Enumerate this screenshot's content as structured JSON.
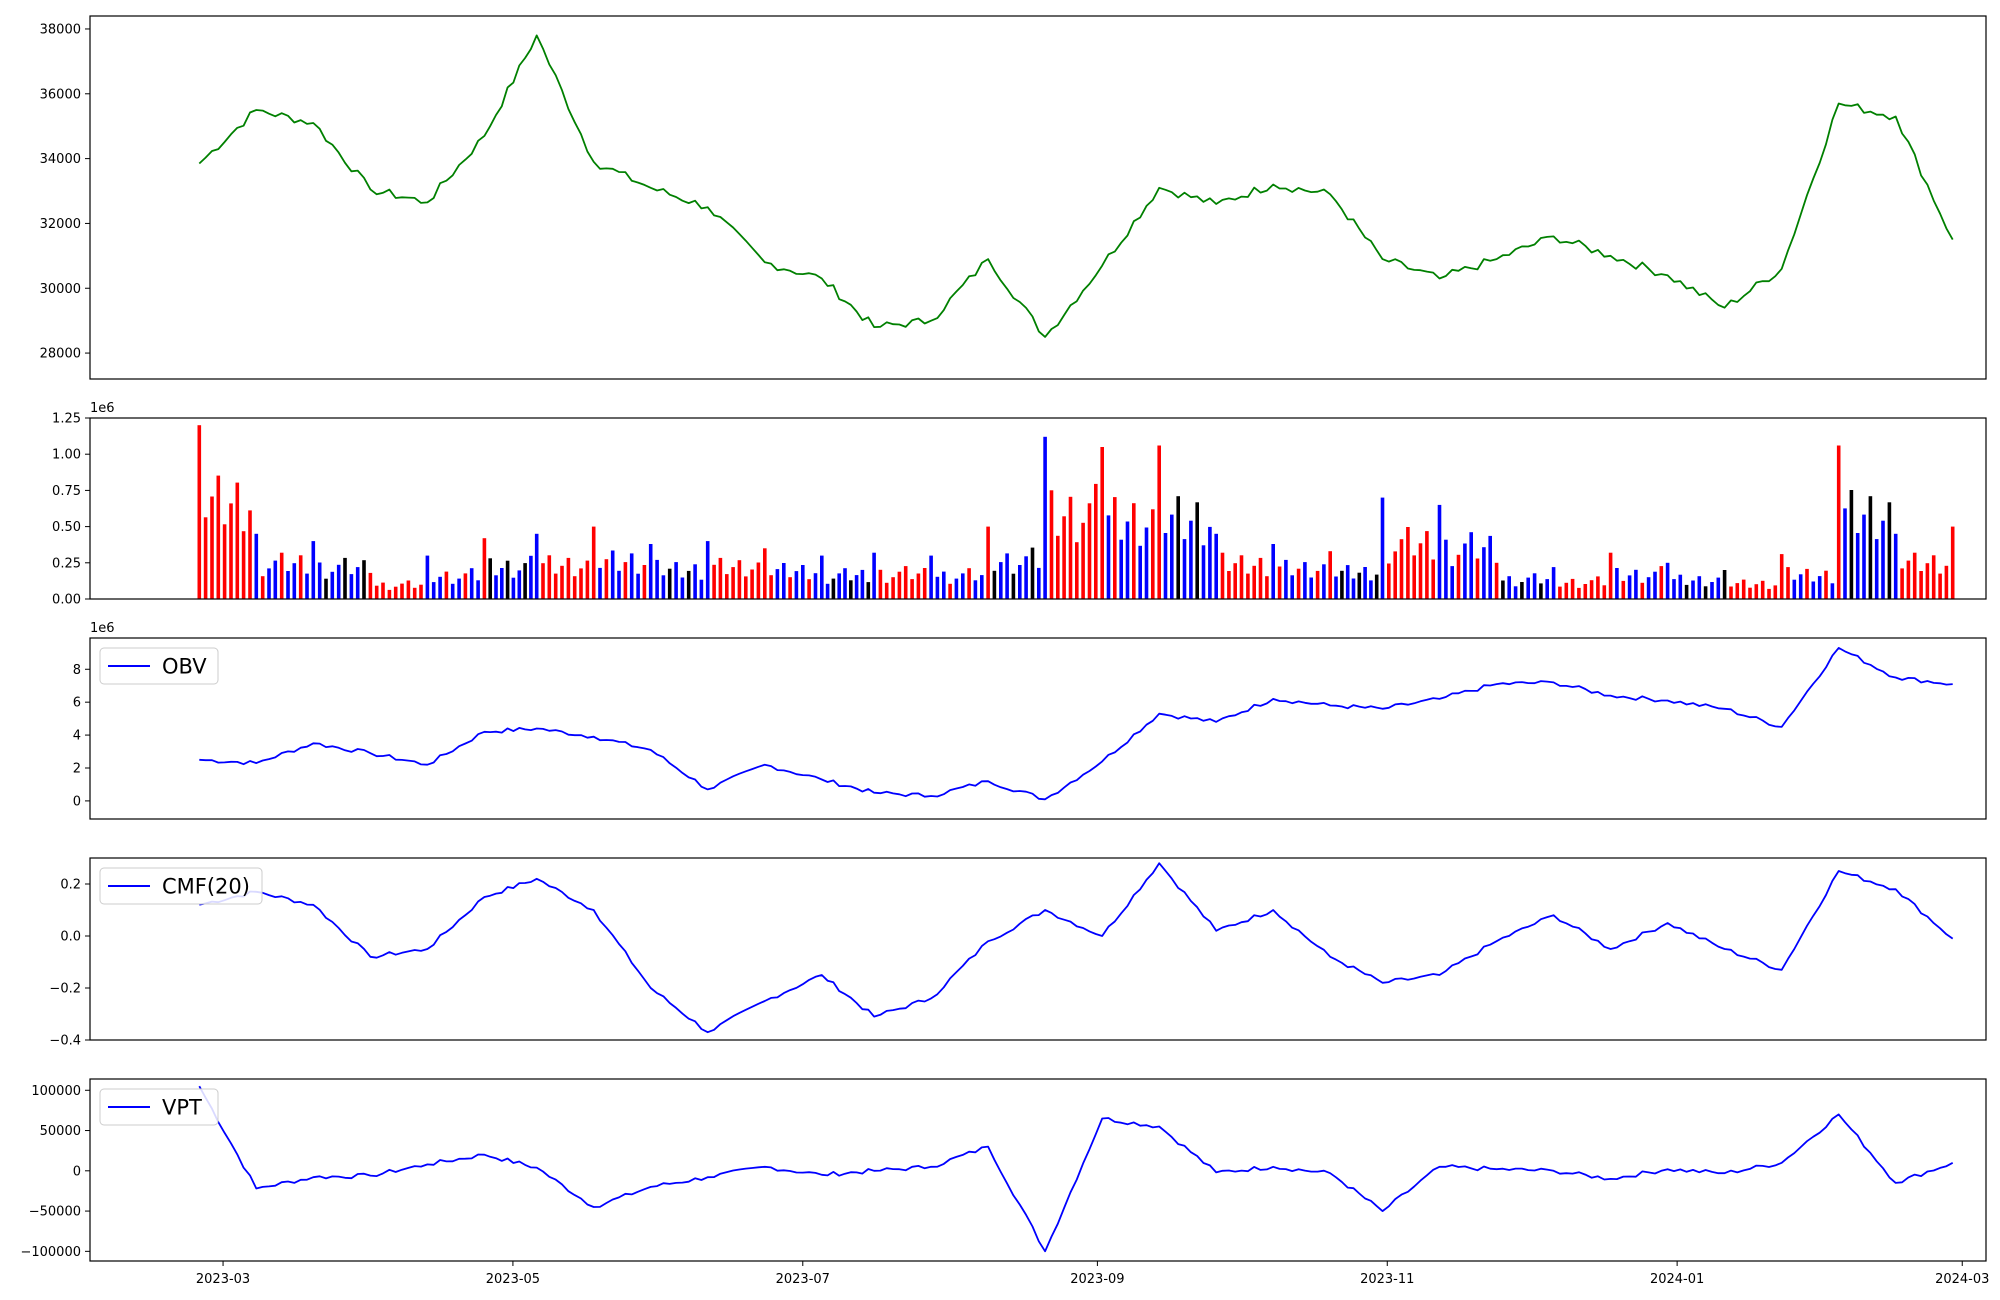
{
  "chart_data": [
    {
      "type": "line",
      "name": "price",
      "color": "#008000",
      "ylim": [
        27200,
        38400
      ],
      "yticks": [
        28000,
        30000,
        32000,
        34000,
        36000,
        38000
      ],
      "ytick_labels": [
        "28000",
        "30000",
        "32000",
        "34000",
        "36000",
        "38000"
      ],
      "x": [
        "2023-02-24",
        "2023-03-08",
        "2023-03-20",
        "2023-04-01",
        "2023-04-13",
        "2023-04-25",
        "2023-05-06",
        "2023-05-18",
        "2023-05-30",
        "2023-06-11",
        "2023-06-23",
        "2023-07-05",
        "2023-07-16",
        "2023-07-28",
        "2023-08-09",
        "2023-08-21",
        "2023-09-02",
        "2023-09-14",
        "2023-09-26",
        "2023-10-08",
        "2023-10-20",
        "2023-10-31",
        "2023-11-12",
        "2023-11-24",
        "2023-12-06",
        "2023-12-18",
        "2023-12-30",
        "2024-01-11",
        "2024-01-23",
        "2024-02-04",
        "2024-02-16",
        "2024-02-28"
      ],
      "y": [
        33850,
        35500,
        35100,
        33050,
        32650,
        34700,
        37800,
        33900,
        33100,
        32500,
        30800,
        30300,
        28800,
        29000,
        30900,
        28500,
        30700,
        33100,
        32600,
        33200,
        32900,
        30900,
        30300,
        30900,
        31600,
        31000,
        30400,
        29400,
        30600,
        35700,
        35300,
        31500
      ]
    },
    {
      "type": "bar",
      "name": "volume",
      "ylim": [
        0,
        1250000
      ],
      "yticks": [
        0,
        250000,
        500000,
        750000,
        1000000,
        1250000
      ],
      "ytick_labels": [
        "0.00",
        "0.25",
        "0.50",
        "0.75",
        "1.00",
        "1.25"
      ],
      "offset_text": "1e6",
      "colors": {
        "up": "#ff0000",
        "down": "#0000ff",
        "flat": "#000000"
      },
      "x": [
        "2023-02-24",
        "2023-03-08",
        "2023-03-20",
        "2023-04-01",
        "2023-04-13",
        "2023-04-25",
        "2023-05-06",
        "2023-05-18",
        "2023-05-30",
        "2023-06-11",
        "2023-06-23",
        "2023-07-05",
        "2023-07-16",
        "2023-07-28",
        "2023-08-09",
        "2023-08-21",
        "2023-09-02",
        "2023-09-14",
        "2023-09-26",
        "2023-10-08",
        "2023-10-20",
        "2023-10-31",
        "2023-11-12",
        "2023-11-24",
        "2023-12-06",
        "2023-12-18",
        "2023-12-30",
        "2024-01-11",
        "2024-01-23",
        "2024-02-04",
        "2024-02-16",
        "2024-02-28"
      ],
      "values": [
        1200000,
        450000,
        400000,
        180000,
        300000,
        420000,
        450000,
        500000,
        380000,
        400000,
        350000,
        300000,
        320000,
        300000,
        500000,
        1120000,
        1050000,
        1060000,
        450000,
        380000,
        330000,
        700000,
        650000,
        250000,
        220000,
        320000,
        250000,
        200000,
        310000,
        1060000,
        450000,
        500000
      ],
      "direction": [
        "up",
        "down",
        "down",
        "up",
        "down",
        "up",
        "down",
        "up",
        "down",
        "down",
        "up",
        "down",
        "down",
        "down",
        "up",
        "down",
        "up",
        "up",
        "down",
        "down",
        "up",
        "down",
        "down",
        "up",
        "down",
        "up",
        "down",
        "flat",
        "up",
        "up",
        "down",
        "up"
      ]
    },
    {
      "type": "line",
      "name": "obv",
      "color": "#0000ff",
      "ylim": [
        -1100000,
        9900000
      ],
      "yticks": [
        0,
        2000000,
        4000000,
        6000000,
        8000000
      ],
      "ytick_labels": [
        "0",
        "2",
        "4",
        "6",
        "8"
      ],
      "offset_text": "1e6",
      "legend": {
        "label": "OBV",
        "position": "upper-left"
      },
      "x": [
        "2023-02-24",
        "2023-03-08",
        "2023-03-20",
        "2023-04-01",
        "2023-04-13",
        "2023-04-25",
        "2023-05-06",
        "2023-05-18",
        "2023-05-30",
        "2023-06-11",
        "2023-06-23",
        "2023-07-05",
        "2023-07-16",
        "2023-07-28",
        "2023-08-09",
        "2023-08-21",
        "2023-09-02",
        "2023-09-14",
        "2023-09-26",
        "2023-10-08",
        "2023-10-20",
        "2023-10-31",
        "2023-11-12",
        "2023-11-24",
        "2023-12-06",
        "2023-12-18",
        "2023-12-30",
        "2024-01-11",
        "2024-01-23",
        "2024-02-04",
        "2024-02-16",
        "2024-02-28"
      ],
      "y": [
        2500000,
        2300000,
        3500000,
        2900000,
        2200000,
        4200000,
        4400000,
        3900000,
        3100000,
        700000,
        2200000,
        1300000,
        500000,
        300000,
        1200000,
        100000,
        2400000,
        5300000,
        4800000,
        6200000,
        5800000,
        5600000,
        6200000,
        7100000,
        7200000,
        6400000,
        6100000,
        5600000,
        4500000,
        9300000,
        7500000,
        7100000
      ]
    },
    {
      "type": "line",
      "name": "cmf",
      "color": "#0000ff",
      "ylim": [
        -0.4,
        0.3
      ],
      "yticks": [
        -0.4,
        -0.2,
        0.0,
        0.2
      ],
      "ytick_labels": [
        "−0.4",
        "−0.2",
        "0.0",
        "0.2"
      ],
      "legend": {
        "label": "CMF(20)",
        "position": "upper-left"
      },
      "x": [
        "2023-02-24",
        "2023-03-08",
        "2023-03-20",
        "2023-04-01",
        "2023-04-13",
        "2023-04-25",
        "2023-05-06",
        "2023-05-18",
        "2023-05-30",
        "2023-06-11",
        "2023-06-23",
        "2023-07-05",
        "2023-07-16",
        "2023-07-28",
        "2023-08-09",
        "2023-08-21",
        "2023-09-02",
        "2023-09-14",
        "2023-09-26",
        "2023-10-08",
        "2023-10-20",
        "2023-10-31",
        "2023-11-12",
        "2023-11-24",
        "2023-12-06",
        "2023-12-18",
        "2023-12-30",
        "2024-01-11",
        "2024-01-23",
        "2024-02-04",
        "2024-02-16",
        "2024-02-28"
      ],
      "y": [
        0.12,
        0.17,
        0.12,
        -0.08,
        -0.05,
        0.15,
        0.22,
        0.1,
        -0.2,
        -0.37,
        -0.25,
        -0.15,
        -0.31,
        -0.24,
        -0.02,
        0.1,
        0.0,
        0.28,
        0.02,
        0.1,
        -0.08,
        -0.18,
        -0.15,
        -0.02,
        0.08,
        -0.05,
        0.05,
        -0.05,
        -0.13,
        0.25,
        0.18,
        -0.01
      ]
    },
    {
      "type": "line",
      "name": "vpt",
      "color": "#0000ff",
      "ylim": [
        -112000,
        114000
      ],
      "yticks": [
        -100000,
        -50000,
        0,
        50000,
        100000
      ],
      "ytick_labels": [
        "−100000",
        "−50000",
        "0",
        "50000",
        "100000"
      ],
      "legend": {
        "label": "VPT",
        "position": "upper-left"
      },
      "xticks": [
        "2023-03-01",
        "2023-05-01",
        "2023-07-01",
        "2023-09-01",
        "2023-11-01",
        "2024-01-01",
        "2024-03-01"
      ],
      "xtick_labels": [
        "2023-03",
        "2023-05",
        "2023-07",
        "2023-09",
        "2023-11",
        "2024-01",
        "2024-03"
      ],
      "x": [
        "2023-02-24",
        "2023-03-08",
        "2023-03-20",
        "2023-04-01",
        "2023-04-13",
        "2023-04-25",
        "2023-05-06",
        "2023-05-18",
        "2023-05-30",
        "2023-06-11",
        "2023-06-23",
        "2023-07-05",
        "2023-07-16",
        "2023-07-28",
        "2023-08-09",
        "2023-08-21",
        "2023-09-02",
        "2023-09-14",
        "2023-09-26",
        "2023-10-08",
        "2023-10-20",
        "2023-10-31",
        "2023-11-12",
        "2023-11-24",
        "2023-12-06",
        "2023-12-18",
        "2023-12-30",
        "2024-01-11",
        "2024-01-23",
        "2024-02-04",
        "2024-02-16",
        "2024-02-28"
      ],
      "y": [
        105000,
        -22000,
        -8000,
        -6000,
        8000,
        20000,
        4000,
        -45000,
        -20000,
        -8000,
        5000,
        -5000,
        0,
        5000,
        30000,
        -100000,
        65000,
        55000,
        -2000,
        5000,
        -3000,
        -50000,
        5000,
        2000,
        0,
        -10000,
        2000,
        -3000,
        10000,
        70000,
        -15000,
        10000
      ]
    }
  ]
}
